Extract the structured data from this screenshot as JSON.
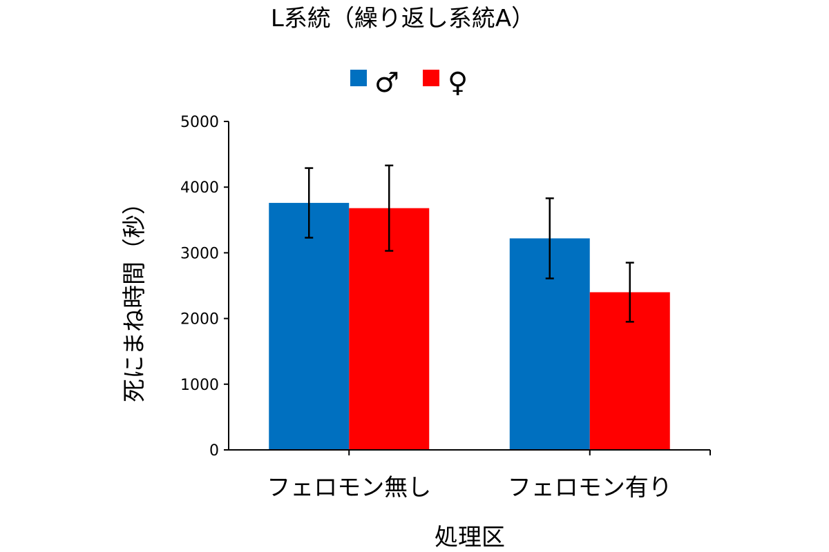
{
  "chart_data": {
    "type": "bar",
    "title": "L系統（繰り返し系統A）",
    "xlabel": "処理区",
    "ylabel": "死にまね時間（秒）",
    "categories": [
      "フェロモン無し",
      "フェロモン有り"
    ],
    "ylim": [
      0,
      5000
    ],
    "yticks": [
      "0",
      "1000",
      "2000",
      "3000",
      "4000",
      "5000"
    ],
    "legend_position": "top-center",
    "grid": false,
    "series": [
      {
        "name": "♂",
        "color": "#0070C0",
        "values": [
          3760,
          3220
        ],
        "error": [
          530,
          610
        ]
      },
      {
        "name": "♀",
        "color": "#FF0000",
        "values": [
          3680,
          2400
        ],
        "error": [
          650,
          450
        ]
      }
    ]
  }
}
